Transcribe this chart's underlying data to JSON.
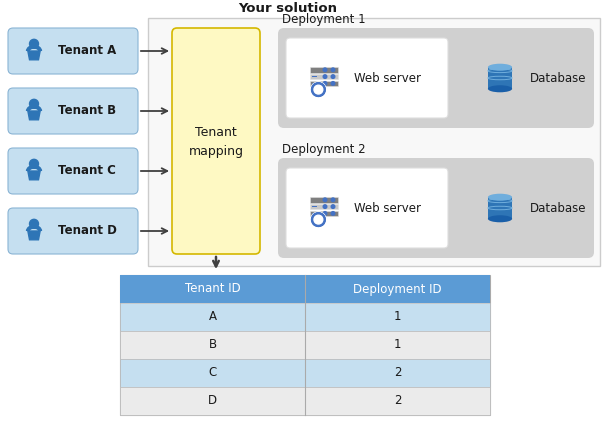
{
  "title": "Your solution",
  "bg_color": "#ffffff",
  "tenant_box_color": "#c5dff0",
  "tenant_box_edge": "#8ab4d4",
  "mapping_box_color": "#fef9c3",
  "mapping_box_edge": "#d4b800",
  "deployment_bg_color": "#d0d0d0",
  "solution_border_color": "#cccccc",
  "tenants": [
    "Tenant A",
    "Tenant B",
    "Tenant C",
    "Tenant D"
  ],
  "table_header_color": "#5b9bd5",
  "table_header_text_color": "#ffffff",
  "table_row_alt1": "#c5dff0",
  "table_row_alt2": "#ebebeb",
  "table_border_color": "#aaaaaa",
  "table_cell_border": "#bbbbbb",
  "table_data": [
    [
      "A",
      "1"
    ],
    [
      "B",
      "1"
    ],
    [
      "C",
      "2"
    ],
    [
      "D",
      "2"
    ]
  ],
  "col_headers": [
    "Tenant ID",
    "Deployment ID"
  ],
  "person_color": "#2e75b6",
  "server_body_color": "#7f7f7f",
  "server_stripe_color": "#4472c4",
  "server_gear_color": "#4472c4",
  "db_body_color": "#2e75b6",
  "db_top_color": "#70aedd",
  "db_bottom_color": "#1a5fa8",
  "arrow_color": "#404040",
  "text_color": "#1a1a1a"
}
